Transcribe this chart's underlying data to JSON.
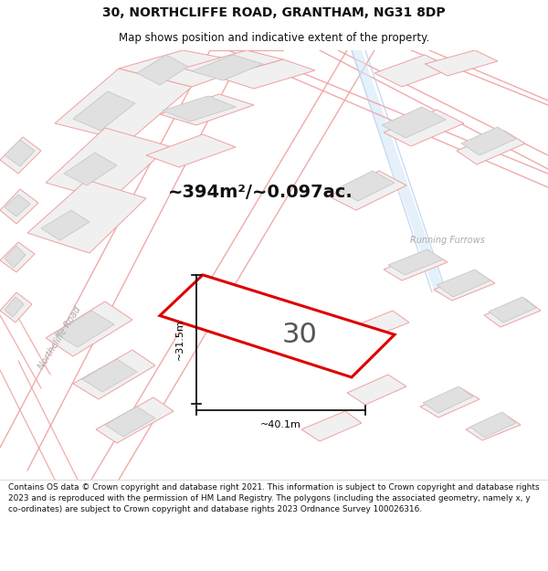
{
  "title_line1": "30, NORTHCLIFFE ROAD, GRANTHAM, NG31 8DP",
  "title_line2": "Map shows position and indicative extent of the property.",
  "footer_text": "Contains OS data © Crown copyright and database right 2021. This information is subject to Crown copyright and database rights 2023 and is reproduced with the permission of HM Land Registry. The polygons (including the associated geometry, namely x, y co-ordinates) are subject to Crown copyright and database rights 2023 Ordnance Survey 100026316.",
  "area_label": "~394m²/~0.097ac.",
  "property_number": "30",
  "dim_width": "~40.1m",
  "dim_height": "~31.5m",
  "road_label_diag": "Northcliffe Road",
  "road_label_right": "Running Furrows",
  "map_bg": "#f8f8f8",
  "property_fill": "#ffffff",
  "property_edge": "#dd0000",
  "road_line_color": "#f0a0a0",
  "parcel_line_color": "#f0a0a0",
  "building_fill": "#e0e0e0",
  "building_edge": "#c8c8c8",
  "water_fill": "#d4e8f8",
  "water_edge": "#b0ccec",
  "dim_color": "#000000",
  "text_color": "#111111",
  "road_text_color": "#aaaaaa",
  "area_text_color": "#111111",
  "number_text_color": "#555555",
  "title_bg": "#ffffff",
  "footer_bg": "#ffffff",
  "title_fontsize": 10,
  "subtitle_fontsize": 8.5,
  "area_fontsize": 14,
  "number_fontsize": 22,
  "dim_fontsize": 8,
  "road_fontsize": 7
}
